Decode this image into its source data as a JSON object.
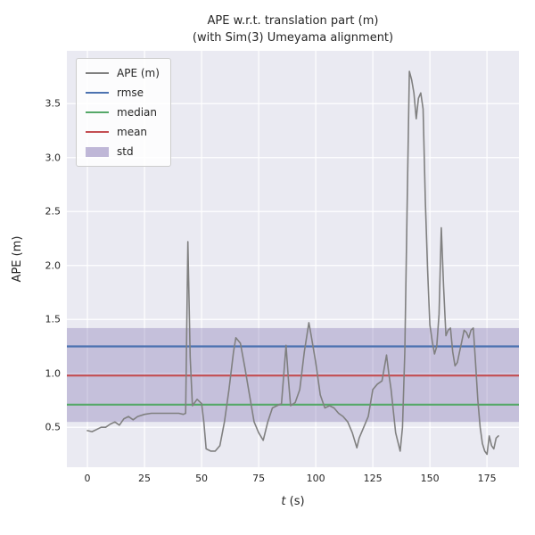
{
  "title": {
    "line1": "APE w.r.t. translation part (m)",
    "line2": "(with Sim(3) Umeyama alignment)"
  },
  "axes": {
    "xlabel": "t (s)",
    "xlabel_var": "t",
    "xlabel_rest": " (s)",
    "ylabel": "APE (m)",
    "xlim": [
      -9,
      189
    ],
    "ylim": [
      0.13,
      3.99
    ],
    "xticks": [
      0,
      25,
      50,
      75,
      100,
      125,
      150,
      175
    ],
    "yticks": [
      0.5,
      1.0,
      1.5,
      2.0,
      2.5,
      3.0,
      3.5
    ]
  },
  "legend": [
    {
      "label": "APE (m)",
      "color": "#808080",
      "swatch": "line"
    },
    {
      "label": "rmse",
      "color": "#4c72b0",
      "swatch": "line"
    },
    {
      "label": "median",
      "color": "#55a868",
      "swatch": "line"
    },
    {
      "label": "mean",
      "color": "#c44e52",
      "swatch": "line"
    },
    {
      "label": "std",
      "color": "#8172b2",
      "swatch": "patch"
    }
  ],
  "chart_data": {
    "type": "line",
    "title": "APE w.r.t. translation part (m) (with Sim(3) Umeyama alignment)",
    "xlabel": "t (s)",
    "ylabel": "APE (m)",
    "xlim": [
      -9,
      189
    ],
    "ylim": [
      0.13,
      3.99
    ],
    "grid": true,
    "grid_color": "#ffffff",
    "background": "#eaeaf2",
    "legend_position": "upper left",
    "series": [
      {
        "name": "APE (m)",
        "color": "#808080",
        "x": [
          0,
          2,
          4,
          6,
          8,
          10,
          12,
          14,
          16,
          18,
          20,
          22,
          25,
          28,
          31,
          34,
          37,
          40,
          42,
          43,
          44,
          45,
          46,
          48,
          50,
          51,
          52,
          54,
          56,
          58,
          60,
          62,
          64,
          65,
          67,
          69,
          71,
          73,
          75,
          77,
          79,
          81,
          83,
          85,
          87,
          88,
          89,
          91,
          93,
          95,
          97,
          98,
          100,
          102,
          104,
          106,
          108,
          110,
          112,
          114,
          116,
          118,
          119,
          121,
          123,
          125,
          127,
          129,
          131,
          132,
          133,
          135,
          137,
          138,
          139,
          140,
          141,
          142,
          143,
          144,
          145,
          146,
          147,
          148,
          149,
          150,
          151,
          152,
          153,
          154,
          155,
          156,
          157,
          158,
          159,
          160,
          161,
          162,
          163,
          164,
          165,
          166,
          167,
          168,
          169,
          170,
          171,
          172,
          173,
          174,
          175,
          176,
          177,
          178,
          179,
          180
        ],
        "y": [
          0.47,
          0.46,
          0.48,
          0.5,
          0.5,
          0.53,
          0.55,
          0.52,
          0.58,
          0.6,
          0.57,
          0.6,
          0.62,
          0.63,
          0.63,
          0.63,
          0.63,
          0.63,
          0.62,
          0.63,
          2.22,
          1.15,
          0.7,
          0.76,
          0.72,
          0.55,
          0.3,
          0.28,
          0.28,
          0.33,
          0.55,
          0.85,
          1.2,
          1.33,
          1.28,
          1.05,
          0.8,
          0.55,
          0.45,
          0.38,
          0.55,
          0.68,
          0.7,
          0.72,
          1.26,
          0.95,
          0.7,
          0.73,
          0.85,
          1.2,
          1.47,
          1.35,
          1.1,
          0.8,
          0.68,
          0.7,
          0.68,
          0.63,
          0.6,
          0.55,
          0.45,
          0.31,
          0.4,
          0.5,
          0.6,
          0.85,
          0.9,
          0.93,
          1.17,
          1.0,
          0.85,
          0.45,
          0.28,
          0.5,
          1.2,
          2.5,
          3.8,
          3.72,
          3.6,
          3.36,
          3.55,
          3.6,
          3.45,
          2.6,
          1.95,
          1.45,
          1.3,
          1.18,
          1.25,
          1.55,
          2.35,
          1.8,
          1.35,
          1.4,
          1.42,
          1.2,
          1.07,
          1.1,
          1.2,
          1.3,
          1.4,
          1.38,
          1.33,
          1.4,
          1.42,
          1.1,
          0.75,
          0.5,
          0.35,
          0.28,
          0.25,
          0.42,
          0.33,
          0.3,
          0.4,
          0.42
        ]
      }
    ],
    "stats": {
      "rmse": {
        "value": 1.25,
        "color": "#4c72b0"
      },
      "mean": {
        "value": 0.98,
        "color": "#c44e52"
      },
      "median": {
        "value": 0.71,
        "color": "#55a868"
      },
      "std_band": {
        "low": 0.55,
        "high": 1.42,
        "color": "#8172b2",
        "opacity": 0.35
      }
    }
  }
}
